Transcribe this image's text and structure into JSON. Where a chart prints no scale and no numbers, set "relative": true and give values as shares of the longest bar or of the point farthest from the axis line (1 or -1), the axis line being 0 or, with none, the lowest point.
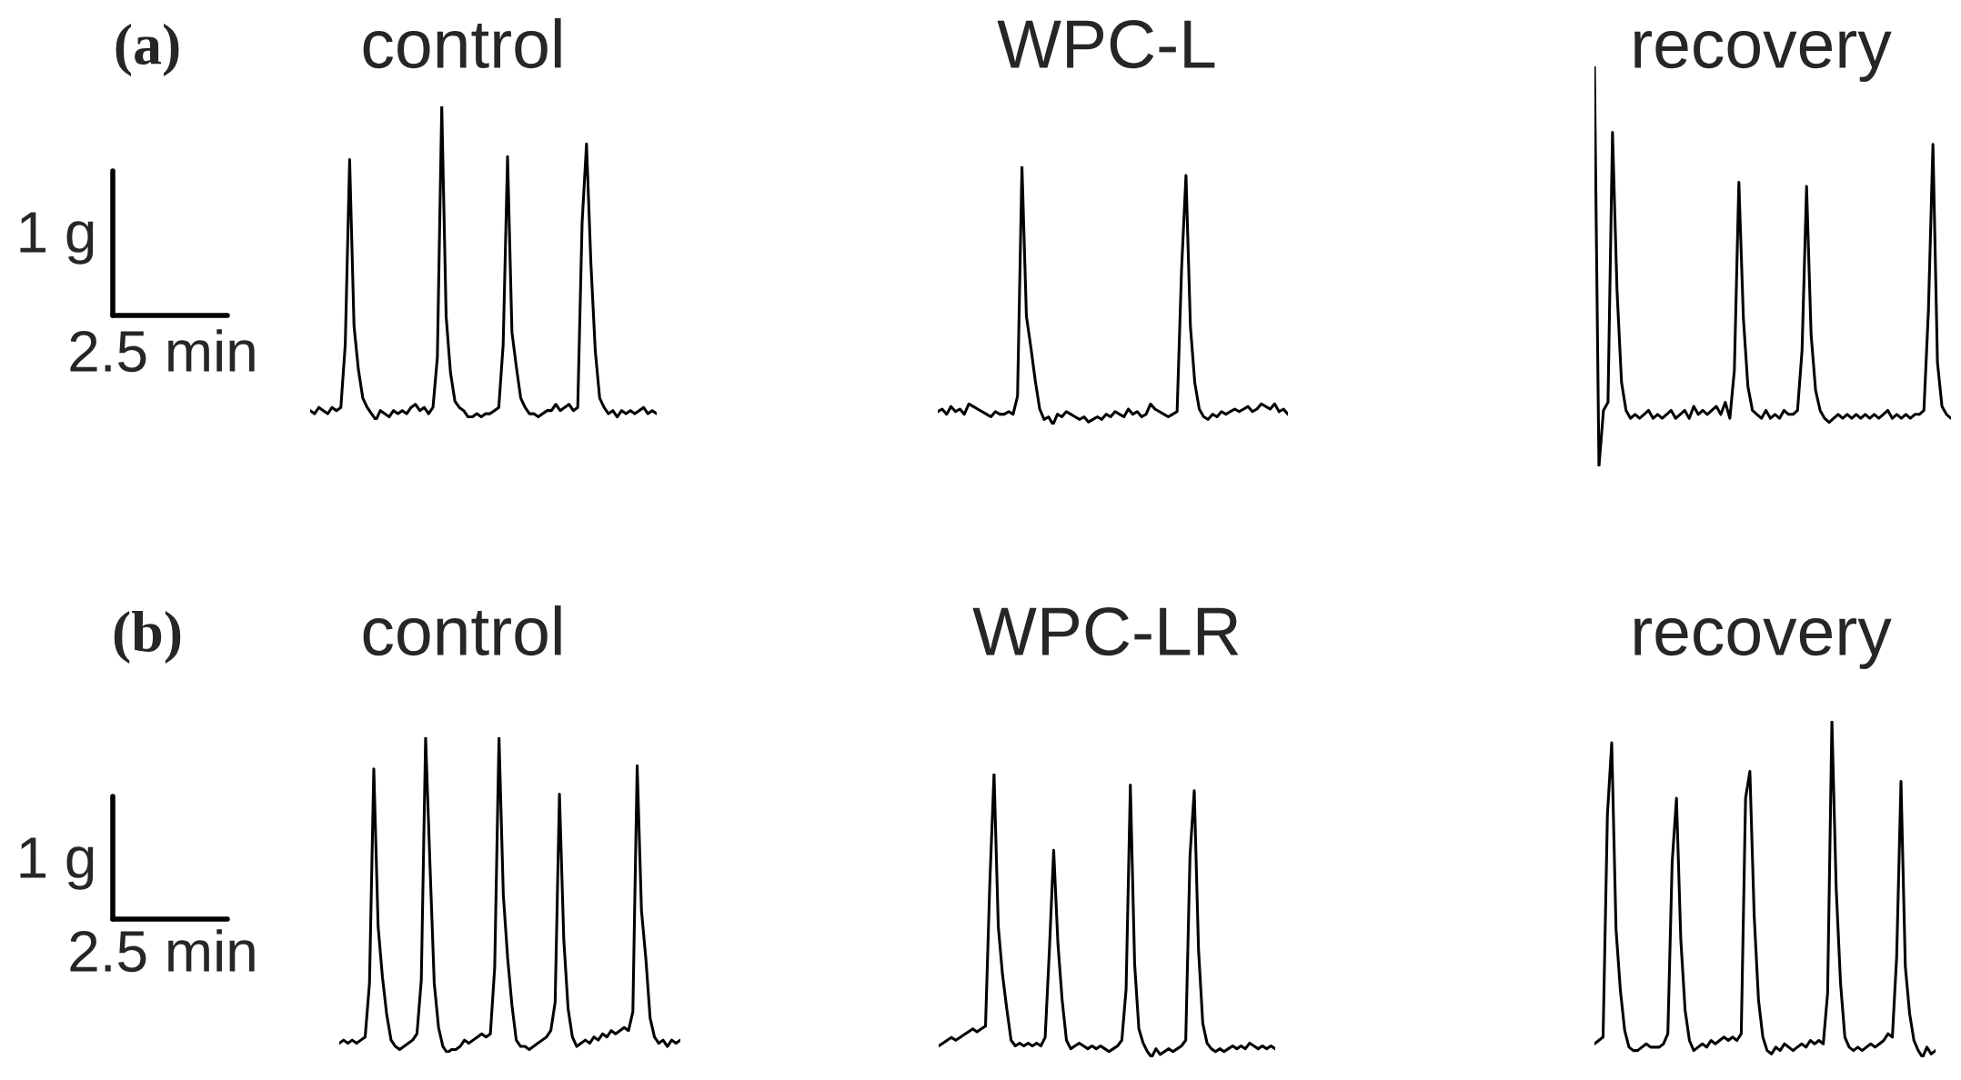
{
  "chart_data": [
    {
      "type": "line",
      "title": "control",
      "relative": true,
      "annotations": [
        "(a)",
        "1 g",
        "2.5 min"
      ],
      "categories": [
        null,
        null,
        null,
        null,
        null,
        null,
        null,
        null,
        null,
        null,
        null,
        null,
        null,
        null,
        null,
        null,
        null,
        null,
        null,
        null,
        null,
        null,
        null,
        null,
        null,
        null,
        null,
        null,
        null,
        null,
        null,
        null,
        null,
        null,
        null,
        null,
        null,
        null,
        null,
        null,
        null,
        null,
        null,
        null,
        null,
        null,
        null,
        null,
        null,
        null,
        null,
        null,
        null,
        null,
        null,
        null,
        null,
        null,
        null,
        null,
        null,
        null,
        null,
        null,
        null,
        null,
        null,
        null,
        null,
        null,
        null,
        null,
        null,
        null,
        null,
        null,
        null,
        null,
        null,
        null
      ],
      "series": [
        {
          "color": "#000000",
          "values": [
            0.03,
            0.02,
            0.04,
            0.03,
            0.02,
            0.04,
            0.03,
            0.04,
            0.24,
            0.83,
            0.3,
            0.16,
            0.07,
            0.04,
            0.02,
            0.0,
            0.03,
            0.02,
            0.01,
            0.03,
            0.02,
            0.03,
            0.02,
            0.04,
            0.05,
            0.03,
            0.04,
            0.02,
            0.04,
            0.2,
            1.0,
            0.33,
            0.15,
            0.06,
            0.04,
            0.03,
            0.01,
            0.01,
            0.02,
            0.01,
            0.02,
            0.02,
            0.03,
            0.04,
            0.24,
            0.84,
            0.28,
            0.17,
            0.07,
            0.04,
            0.02,
            0.02,
            0.01,
            0.02,
            0.03,
            0.03,
            0.05,
            0.03,
            0.04,
            0.05,
            0.03,
            0.04,
            0.63,
            0.88,
            0.5,
            0.22,
            0.07,
            0.04,
            0.02,
            0.03,
            0.01,
            0.03,
            0.02,
            0.03,
            0.02,
            0.03,
            0.04,
            0.02,
            0.03,
            0.02
          ]
        }
      ]
    },
    {
      "type": "line",
      "title": "WPC-L",
      "relative": true,
      "categories": [
        null,
        null,
        null,
        null,
        null,
        null,
        null,
        null,
        null,
        null,
        null,
        null,
        null,
        null,
        null,
        null,
        null,
        null,
        null,
        null,
        null,
        null,
        null,
        null,
        null,
        null,
        null,
        null,
        null,
        null,
        null,
        null,
        null,
        null,
        null,
        null,
        null,
        null,
        null,
        null,
        null,
        null,
        null,
        null,
        null,
        null,
        null,
        null,
        null,
        null,
        null,
        null,
        null,
        null,
        null,
        null,
        null,
        null,
        null,
        null,
        null,
        null,
        null,
        null,
        null,
        null,
        null,
        null,
        null,
        null,
        null,
        null,
        null,
        null,
        null,
        null,
        null,
        null,
        null,
        null
      ],
      "series": [
        {
          "color": "#000000",
          "values": [
            0.05,
            0.06,
            0.04,
            0.07,
            0.05,
            0.06,
            0.04,
            0.08,
            0.07,
            0.06,
            0.05,
            0.04,
            0.03,
            0.05,
            0.04,
            0.04,
            0.05,
            0.04,
            0.11,
            1.0,
            0.42,
            0.3,
            0.17,
            0.06,
            0.02,
            0.03,
            0.0,
            0.04,
            0.03,
            0.05,
            0.04,
            0.03,
            0.02,
            0.03,
            0.01,
            0.02,
            0.03,
            0.02,
            0.04,
            0.03,
            0.05,
            0.04,
            0.03,
            0.06,
            0.04,
            0.05,
            0.03,
            0.04,
            0.08,
            0.06,
            0.05,
            0.04,
            0.03,
            0.04,
            0.05,
            0.6,
            0.965,
            0.38,
            0.16,
            0.06,
            0.03,
            0.02,
            0.04,
            0.03,
            0.05,
            0.04,
            0.05,
            0.06,
            0.05,
            0.06,
            0.07,
            0.05,
            0.06,
            0.08,
            0.07,
            0.06,
            0.08,
            0.05,
            0.06,
            0.04
          ]
        }
      ]
    },
    {
      "type": "line",
      "title": "recovery",
      "relative": true,
      "categories": [
        null,
        null,
        null,
        null,
        null,
        null,
        null,
        null,
        null,
        null,
        null,
        null,
        null,
        null,
        null,
        null,
        null,
        null,
        null,
        null,
        null,
        null,
        null,
        null,
        null,
        null,
        null,
        null,
        null,
        null,
        null,
        null,
        null,
        null,
        null,
        null,
        null,
        null,
        null,
        null,
        null,
        null,
        null,
        null,
        null,
        null,
        null,
        null,
        null,
        null,
        null,
        null,
        null,
        null,
        null,
        null,
        null,
        null,
        null,
        null,
        null,
        null,
        null,
        null,
        null,
        null,
        null,
        null,
        null,
        null,
        null,
        null,
        null,
        null,
        null,
        null,
        null,
        null,
        null,
        null
      ],
      "series": [
        {
          "color": "#000000",
          "values": [
            1.0,
            0.0,
            0.14,
            0.16,
            0.835,
            0.44,
            0.21,
            0.14,
            0.12,
            0.13,
            0.12,
            0.13,
            0.14,
            0.12,
            0.13,
            0.12,
            0.13,
            0.14,
            0.12,
            0.13,
            0.14,
            0.12,
            0.15,
            0.13,
            0.14,
            0.13,
            0.14,
            0.15,
            0.13,
            0.16,
            0.12,
            0.24,
            0.71,
            0.37,
            0.2,
            0.14,
            0.13,
            0.12,
            0.14,
            0.12,
            0.13,
            0.12,
            0.14,
            0.13,
            0.13,
            0.14,
            0.29,
            0.7,
            0.33,
            0.19,
            0.14,
            0.12,
            0.11,
            0.12,
            0.13,
            0.12,
            0.13,
            0.12,
            0.13,
            0.12,
            0.13,
            0.12,
            0.13,
            0.12,
            0.13,
            0.14,
            0.12,
            0.13,
            0.12,
            0.13,
            0.12,
            0.13,
            0.13,
            0.14,
            0.39,
            0.805,
            0.26,
            0.15,
            0.13,
            0.12
          ]
        }
      ]
    },
    {
      "type": "line",
      "title": "control",
      "relative": true,
      "annotations": [
        "(b)",
        "1 g",
        "2.5 min"
      ],
      "categories": [
        null,
        null,
        null,
        null,
        null,
        null,
        null,
        null,
        null,
        null,
        null,
        null,
        null,
        null,
        null,
        null,
        null,
        null,
        null,
        null,
        null,
        null,
        null,
        null,
        null,
        null,
        null,
        null,
        null,
        null,
        null,
        null,
        null,
        null,
        null,
        null,
        null,
        null,
        null,
        null,
        null,
        null,
        null,
        null,
        null,
        null,
        null,
        null,
        null,
        null,
        null,
        null,
        null,
        null,
        null,
        null,
        null,
        null,
        null,
        null,
        null,
        null,
        null,
        null,
        null,
        null,
        null,
        null,
        null,
        null,
        null,
        null,
        null,
        null,
        null,
        null,
        null,
        null,
        null,
        null
      ],
      "series": [
        {
          "color": "#000000",
          "values": [
            0.03,
            0.04,
            0.03,
            0.04,
            0.03,
            0.04,
            0.05,
            0.22,
            0.9,
            0.4,
            0.24,
            0.12,
            0.04,
            0.02,
            0.01,
            0.02,
            0.03,
            0.04,
            0.06,
            0.23,
            1.0,
            0.6,
            0.22,
            0.08,
            0.02,
            0.0,
            0.01,
            0.01,
            0.02,
            0.04,
            0.03,
            0.04,
            0.05,
            0.06,
            0.05,
            0.06,
            0.27,
            1.0,
            0.5,
            0.3,
            0.15,
            0.04,
            0.02,
            0.02,
            0.01,
            0.02,
            0.03,
            0.04,
            0.05,
            0.07,
            0.16,
            0.82,
            0.36,
            0.14,
            0.05,
            0.02,
            0.03,
            0.04,
            0.03,
            0.05,
            0.04,
            0.06,
            0.05,
            0.07,
            0.06,
            0.07,
            0.08,
            0.07,
            0.13,
            0.91,
            0.45,
            0.3,
            0.11,
            0.05,
            0.03,
            0.04,
            0.02,
            0.04,
            0.03,
            0.04
          ]
        }
      ]
    },
    {
      "type": "line",
      "title": "WPC-LR",
      "relative": true,
      "categories": [
        null,
        null,
        null,
        null,
        null,
        null,
        null,
        null,
        null,
        null,
        null,
        null,
        null,
        null,
        null,
        null,
        null,
        null,
        null,
        null,
        null,
        null,
        null,
        null,
        null,
        null,
        null,
        null,
        null,
        null,
        null,
        null,
        null,
        null,
        null,
        null,
        null,
        null,
        null,
        null,
        null,
        null,
        null,
        null,
        null,
        null,
        null,
        null,
        null,
        null,
        null,
        null,
        null,
        null,
        null,
        null,
        null,
        null,
        null,
        null,
        null,
        null,
        null,
        null,
        null,
        null,
        null,
        null,
        null,
        null,
        null,
        null,
        null,
        null,
        null,
        null,
        null,
        null,
        null,
        null
      ],
      "series": [
        {
          "color": "#000000",
          "values": [
            0.04,
            0.05,
            0.06,
            0.07,
            0.06,
            0.07,
            0.08,
            0.09,
            0.1,
            0.09,
            0.1,
            0.11,
            0.61,
            1.0,
            0.46,
            0.29,
            0.17,
            0.06,
            0.04,
            0.05,
            0.04,
            0.05,
            0.04,
            0.05,
            0.04,
            0.07,
            0.38,
            0.73,
            0.4,
            0.2,
            0.06,
            0.03,
            0.04,
            0.05,
            0.04,
            0.03,
            0.04,
            0.03,
            0.04,
            0.03,
            0.02,
            0.03,
            0.04,
            0.06,
            0.24,
            0.96,
            0.33,
            0.1,
            0.05,
            0.02,
            0.0,
            0.03,
            0.01,
            0.02,
            0.03,
            0.02,
            0.03,
            0.04,
            0.06,
            0.71,
            0.94,
            0.38,
            0.12,
            0.05,
            0.03,
            0.02,
            0.03,
            0.02,
            0.03,
            0.04,
            0.03,
            0.04,
            0.03,
            0.05,
            0.04,
            0.03,
            0.04,
            0.03,
            0.04,
            0.03
          ]
        }
      ]
    },
    {
      "type": "line",
      "title": "recovery",
      "relative": true,
      "categories": [
        null,
        null,
        null,
        null,
        null,
        null,
        null,
        null,
        null,
        null,
        null,
        null,
        null,
        null,
        null,
        null,
        null,
        null,
        null,
        null,
        null,
        null,
        null,
        null,
        null,
        null,
        null,
        null,
        null,
        null,
        null,
        null,
        null,
        null,
        null,
        null,
        null,
        null,
        null,
        null,
        null,
        null,
        null,
        null,
        null,
        null,
        null,
        null,
        null,
        null,
        null,
        null,
        null,
        null,
        null,
        null,
        null,
        null,
        null,
        null,
        null,
        null,
        null,
        null,
        null,
        null,
        null,
        null,
        null,
        null,
        null,
        null,
        null,
        null,
        null,
        null,
        null,
        null,
        null,
        null
      ],
      "series": [
        {
          "color": "#000000",
          "values": [
            0.04,
            0.05,
            0.06,
            0.72,
            0.935,
            0.38,
            0.2,
            0.08,
            0.03,
            0.02,
            0.02,
            0.03,
            0.04,
            0.03,
            0.03,
            0.03,
            0.04,
            0.07,
            0.58,
            0.77,
            0.35,
            0.14,
            0.05,
            0.02,
            0.03,
            0.04,
            0.03,
            0.05,
            0.04,
            0.05,
            0.06,
            0.05,
            0.06,
            0.05,
            0.07,
            0.77,
            0.85,
            0.42,
            0.17,
            0.06,
            0.02,
            0.01,
            0.03,
            0.02,
            0.04,
            0.03,
            0.02,
            0.03,
            0.04,
            0.03,
            0.05,
            0.04,
            0.05,
            0.04,
            0.19,
            1.0,
            0.5,
            0.22,
            0.06,
            0.03,
            0.02,
            0.03,
            0.02,
            0.03,
            0.04,
            0.03,
            0.04,
            0.05,
            0.07,
            0.06,
            0.3,
            0.82,
            0.27,
            0.13,
            0.05,
            0.02,
            0.0,
            0.03,
            0.01,
            0.02
          ]
        }
      ]
    }
  ]
}
